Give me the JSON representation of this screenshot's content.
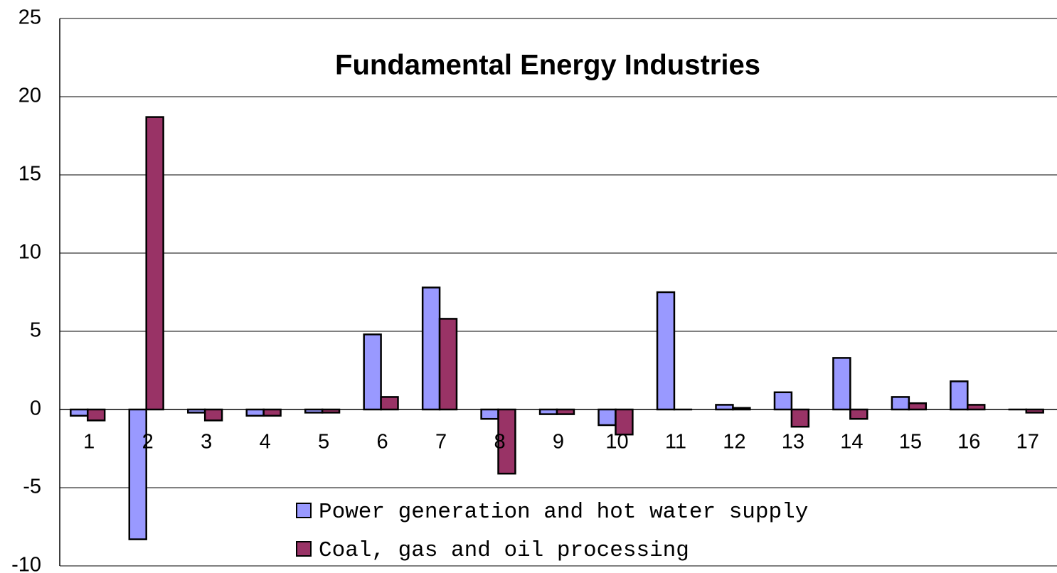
{
  "chart_data": {
    "type": "bar",
    "title": "Fundamental Energy Industries",
    "categories": [
      "1",
      "2",
      "3",
      "4",
      "5",
      "6",
      "7",
      "8",
      "9",
      "10",
      "11",
      "12",
      "13",
      "14",
      "15",
      "16",
      "17"
    ],
    "series": [
      {
        "name": "Power generation and hot water supply",
        "color": "#9999ff",
        "values": [
          -0.4,
          -8.3,
          -0.2,
          -0.4,
          -0.2,
          4.8,
          7.8,
          -0.6,
          -0.3,
          -1.0,
          7.5,
          0.3,
          1.1,
          3.3,
          0.8,
          1.8,
          0
        ]
      },
      {
        "name": "Coal, gas and oil processing",
        "color": "#993366",
        "values": [
          -0.7,
          18.7,
          -0.7,
          -0.4,
          -0.2,
          0.8,
          5.8,
          -4.1,
          -0.3,
          -1.6,
          0,
          0.1,
          -1.1,
          -0.6,
          0.4,
          0.3,
          -0.2
        ]
      }
    ],
    "ylim": [
      -10,
      25
    ],
    "yticks": [
      -10,
      -5,
      0,
      5,
      10,
      15,
      20,
      25
    ],
    "grid": true
  }
}
